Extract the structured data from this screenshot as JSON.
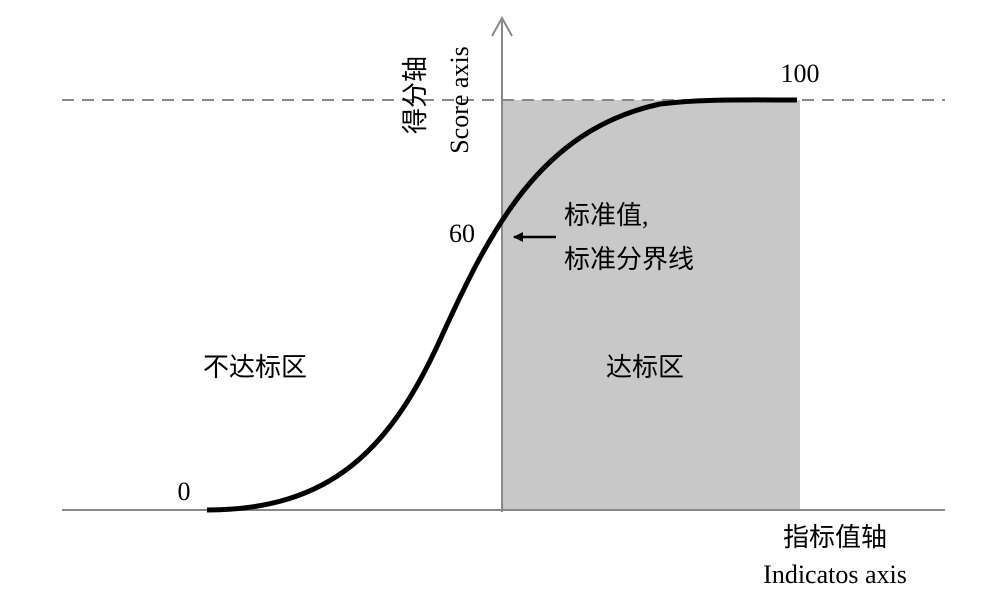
{
  "y_axis": {
    "label_zh": "得分轴",
    "label_en": "Score axis"
  },
  "x_axis": {
    "label_zh": "指标值轴",
    "label_en": "Indicatos axis"
  },
  "levels": {
    "min": 0,
    "standard": 60,
    "max": 100
  },
  "annotation": {
    "line1": "标准值,",
    "line2": "标准分界线"
  },
  "regions": {
    "fail": "不达标区",
    "pass": "达标区"
  }
}
